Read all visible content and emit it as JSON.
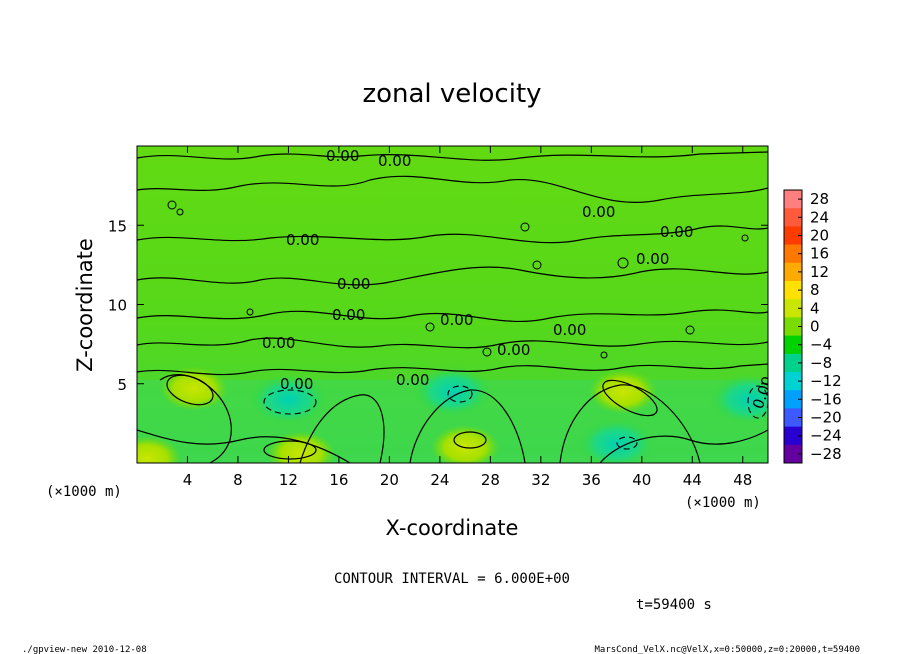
{
  "chart_data": {
    "type": "heatmap",
    "title": "zonal velocity",
    "xlabel": "X-coordinate",
    "ylabel": "Z-coordinate",
    "x_unit_label": "(×1000 m)",
    "y_unit_label": "(×1000 m)",
    "xlim": [
      0,
      50
    ],
    "ylim": [
      0,
      20
    ],
    "x_ticks": [
      4,
      8,
      12,
      16,
      20,
      24,
      28,
      32,
      36,
      40,
      44,
      48
    ],
    "y_ticks": [
      5,
      10,
      15
    ],
    "colorbar": {
      "labels": [
        "28",
        "24",
        "20",
        "16",
        "12",
        "8",
        "4",
        "0",
        "−4",
        "−8",
        "−12",
        "−16",
        "−20",
        "−24",
        "−28"
      ],
      "colors": [
        "#ff7f7f",
        "#ff5a3c",
        "#ff3c00",
        "#ff7800",
        "#ffaa00",
        "#ffe100",
        "#c8e600",
        "#78dc00",
        "#00d200",
        "#00d28c",
        "#00d2d2",
        "#00a0ff",
        "#3c5aff",
        "#2800d2",
        "#6400a0"
      ]
    },
    "contour_interval_text": "CONTOUR INTERVAL = 6.000E+00",
    "contour_labels": [
      "0.00",
      "0.00",
      "0.00",
      "0.00",
      "0.00",
      "0.00",
      "0.00",
      "0.00",
      "0.00",
      "0.00",
      "0.00",
      "0.00",
      "0.00",
      "0.00",
      "0.00",
      "0.00"
    ],
    "warm_regions": [
      {
        "x": 4.5,
        "z": 4.7,
        "value": 6
      },
      {
        "x": 13,
        "z": 0.6,
        "value": 7
      },
      {
        "x": 26,
        "z": 1.0,
        "value": 6
      },
      {
        "x": 38.5,
        "z": 4.5,
        "value": 7
      },
      {
        "x": 0.8,
        "z": 0.3,
        "value": 7
      }
    ],
    "cool_regions": [
      {
        "x": 12,
        "z": 4.0,
        "value": -7
      },
      {
        "x": 25,
        "z": 4.5,
        "value": -4
      },
      {
        "x": 38,
        "z": 1.2,
        "value": -4
      },
      {
        "x": 48.5,
        "z": 4.0,
        "value": -4
      }
    ],
    "time_text": "t=59400 s"
  },
  "footer": {
    "left": "./gpview-new   2010-12-08",
    "right": "MarsCond_VelX.nc@VelX,x=0:50000,z=0:20000,t=59400"
  }
}
